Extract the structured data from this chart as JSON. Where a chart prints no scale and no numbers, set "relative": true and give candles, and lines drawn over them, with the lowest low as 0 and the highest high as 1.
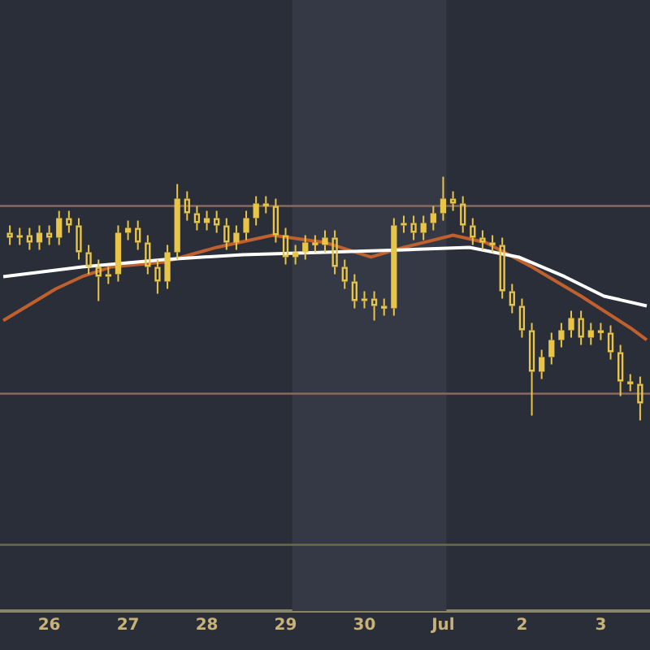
{
  "chart_data": {
    "type": "candlestick",
    "relative": true,
    "color": "#e8c547",
    "x": [
      "--06-25T12:00",
      "--06-25T15:00",
      "--06-25T18:00",
      "--06-25T21:00",
      "--06-26T00:00",
      "--06-26T03:00",
      "--06-26T06:00",
      "--06-26T09:00",
      "--06-26T12:00",
      "--06-26T15:00",
      "--06-26T18:00",
      "--06-26T21:00",
      "--06-27T00:00",
      "--06-27T03:00",
      "--06-27T06:00",
      "--06-27T09:00",
      "--06-27T12:00",
      "--06-27T15:00",
      "--06-27T18:00",
      "--06-27T21:00",
      "--06-28T00:00",
      "--06-28T03:00",
      "--06-28T06:00",
      "--06-28T09:00",
      "--06-28T12:00",
      "--06-28T15:00",
      "--06-28T18:00",
      "--06-28T21:00",
      "--06-29T00:00",
      "--06-29T03:00",
      "--06-29T06:00",
      "--06-29T09:00",
      "--06-29T12:00",
      "--06-29T15:00",
      "--06-29T18:00",
      "--06-29T21:00",
      "--06-30T00:00",
      "--06-30T03:00",
      "--06-30T06:00",
      "--06-30T09:00",
      "--06-30T12:00",
      "--06-30T15:00",
      "--06-30T18:00",
      "--06-30T21:00",
      "--07-01T00:00",
      "--07-01T03:00",
      "--07-01T06:00",
      "--07-01T09:00",
      "--07-01T12:00",
      "--07-01T15:00",
      "--07-01T18:00",
      "--07-01T21:00",
      "--07-02T00:00",
      "--07-02T03:00",
      "--07-02T06:00",
      "--07-02T09:00",
      "--07-02T12:00",
      "--07-02T15:00",
      "--07-02T18:00",
      "--07-02T21:00",
      "--07-03T00:00",
      "--07-03T03:00",
      "--07-03T06:00",
      "--07-03T09:00",
      "--07-03T12:00"
    ],
    "ohlc": [
      [
        0.77,
        0.8,
        0.72,
        0.75
      ],
      [
        0.75,
        0.79,
        0.72,
        0.76
      ],
      [
        0.76,
        0.79,
        0.7,
        0.73
      ],
      [
        0.73,
        0.8,
        0.7,
        0.77
      ],
      [
        0.77,
        0.8,
        0.72,
        0.75
      ],
      [
        0.75,
        0.86,
        0.72,
        0.83
      ],
      [
        0.83,
        0.86,
        0.77,
        0.8
      ],
      [
        0.8,
        0.83,
        0.66,
        0.69
      ],
      [
        0.69,
        0.72,
        0.6,
        0.63
      ],
      [
        0.63,
        0.66,
        0.49,
        0.59
      ],
      [
        0.59,
        0.63,
        0.56,
        0.6
      ],
      [
        0.6,
        0.8,
        0.57,
        0.77
      ],
      [
        0.77,
        0.82,
        0.74,
        0.79
      ],
      [
        0.79,
        0.82,
        0.7,
        0.73
      ],
      [
        0.73,
        0.76,
        0.6,
        0.63
      ],
      [
        0.63,
        0.66,
        0.52,
        0.57
      ],
      [
        0.57,
        0.72,
        0.54,
        0.69
      ],
      [
        0.69,
        0.97,
        0.66,
        0.91
      ],
      [
        0.91,
        0.94,
        0.82,
        0.85
      ],
      [
        0.85,
        0.88,
        0.78,
        0.81
      ],
      [
        0.81,
        0.86,
        0.78,
        0.83
      ],
      [
        0.83,
        0.86,
        0.77,
        0.8
      ],
      [
        0.8,
        0.83,
        0.7,
        0.73
      ],
      [
        0.73,
        0.8,
        0.7,
        0.77
      ],
      [
        0.77,
        0.86,
        0.74,
        0.83
      ],
      [
        0.83,
        0.92,
        0.8,
        0.89
      ],
      [
        0.89,
        0.92,
        0.85,
        0.88
      ],
      [
        0.88,
        0.91,
        0.73,
        0.76
      ],
      [
        0.76,
        0.79,
        0.64,
        0.67
      ],
      [
        0.67,
        0.72,
        0.64,
        0.69
      ],
      [
        0.69,
        0.76,
        0.66,
        0.73
      ],
      [
        0.73,
        0.76,
        0.69,
        0.72
      ],
      [
        0.72,
        0.78,
        0.69,
        0.75
      ],
      [
        0.75,
        0.78,
        0.6,
        0.63
      ],
      [
        0.63,
        0.66,
        0.54,
        0.57
      ],
      [
        0.57,
        0.6,
        0.46,
        0.49
      ],
      [
        0.49,
        0.53,
        0.46,
        0.5
      ],
      [
        0.5,
        0.53,
        0.41,
        0.47
      ],
      [
        0.47,
        0.5,
        0.43,
        0.46
      ],
      [
        0.46,
        0.83,
        0.43,
        0.8
      ],
      [
        0.8,
        0.84,
        0.77,
        0.81
      ],
      [
        0.81,
        0.84,
        0.74,
        0.77
      ],
      [
        0.77,
        0.84,
        0.74,
        0.81
      ],
      [
        0.81,
        0.88,
        0.78,
        0.85
      ],
      [
        0.85,
        1.0,
        0.82,
        0.91
      ],
      [
        0.91,
        0.94,
        0.86,
        0.89
      ],
      [
        0.89,
        0.92,
        0.77,
        0.8
      ],
      [
        0.8,
        0.83,
        0.72,
        0.75
      ],
      [
        0.75,
        0.78,
        0.7,
        0.73
      ],
      [
        0.73,
        0.76,
        0.69,
        0.72
      ],
      [
        0.72,
        0.75,
        0.5,
        0.53
      ],
      [
        0.53,
        0.56,
        0.44,
        0.47
      ],
      [
        0.47,
        0.5,
        0.34,
        0.37
      ],
      [
        0.37,
        0.4,
        0.02,
        0.2
      ],
      [
        0.2,
        0.29,
        0.17,
        0.26
      ],
      [
        0.26,
        0.36,
        0.23,
        0.33
      ],
      [
        0.33,
        0.4,
        0.3,
        0.37
      ],
      [
        0.37,
        0.45,
        0.34,
        0.42
      ],
      [
        0.42,
        0.45,
        0.31,
        0.34
      ],
      [
        0.34,
        0.4,
        0.31,
        0.37
      ],
      [
        0.37,
        0.4,
        0.33,
        0.36
      ],
      [
        0.36,
        0.39,
        0.25,
        0.28
      ],
      [
        0.28,
        0.31,
        0.1,
        0.16
      ],
      [
        0.16,
        0.19,
        0.12,
        0.15
      ],
      [
        0.15,
        0.18,
        0.0,
        0.07
      ]
    ],
    "series": [
      {
        "type": "line",
        "color": "#ffffff",
        "x": [
          "--06-25T10:00",
          "--06-26T10:00",
          "--06-27T11:00",
          "--06-28T11:00",
          "--06-29T12:00",
          "--06-30T12:00",
          "--07-01T08:00",
          "--07-01T23:00",
          "--07-02T13:00",
          "--07-03T01:00",
          "--07-03T14:00"
        ],
        "values": [
          0.59,
          0.63,
          0.66,
          0.68,
          0.69,
          0.7,
          0.71,
          0.67,
          0.59,
          0.51,
          0.47
        ]
      },
      {
        "type": "line",
        "color": "#c0602e",
        "x": [
          "--06-25T10:00",
          "--06-26T02:00",
          "--06-26T10:00",
          "--06-26T19:00",
          "--06-27T11:00",
          "--06-28T03:00",
          "--06-28T20:00",
          "--06-29T12:00",
          "--06-30T02:00",
          "--06-30T12:00",
          "--07-01T03:00",
          "--07-01T13:00",
          "--07-02T03:00",
          "--07-02T18:00",
          "--07-03T09:00",
          "--07-03T14:00"
        ],
        "values": [
          0.41,
          0.54,
          0.59,
          0.63,
          0.65,
          0.71,
          0.76,
          0.73,
          0.67,
          0.71,
          0.76,
          0.73,
          0.63,
          0.51,
          0.38,
          0.33
        ]
      }
    ],
    "xlim": [
      "--06-25T09:00",
      "--07-03T15:00"
    ],
    "xticks": [
      {
        "value": "--06-26",
        "label": "26"
      },
      {
        "value": "--06-27",
        "label": "27"
      },
      {
        "value": "--06-28",
        "label": "28"
      },
      {
        "value": "--06-29",
        "label": "29"
      },
      {
        "value": "--06-30",
        "label": "30"
      },
      {
        "value": "--07-01",
        "label": "Jul"
      },
      {
        "value": "--07-02",
        "label": "2"
      },
      {
        "value": "--07-03",
        "label": "3"
      }
    ],
    "tick_labels": "x",
    "ref_lines": [
      {
        "axis": "y",
        "value": 0.88,
        "color": "#8a6a5e"
      },
      {
        "axis": "y",
        "value": 0.11,
        "color": "#8a6a5e"
      },
      {
        "axis": "y",
        "value": -0.51,
        "color": "#6b6a4f"
      }
    ],
    "bands": [
      {
        "axis": "x",
        "from": "--06-29T02:00",
        "to": "--07-01T01:00",
        "color": "#353945"
      }
    ]
  }
}
